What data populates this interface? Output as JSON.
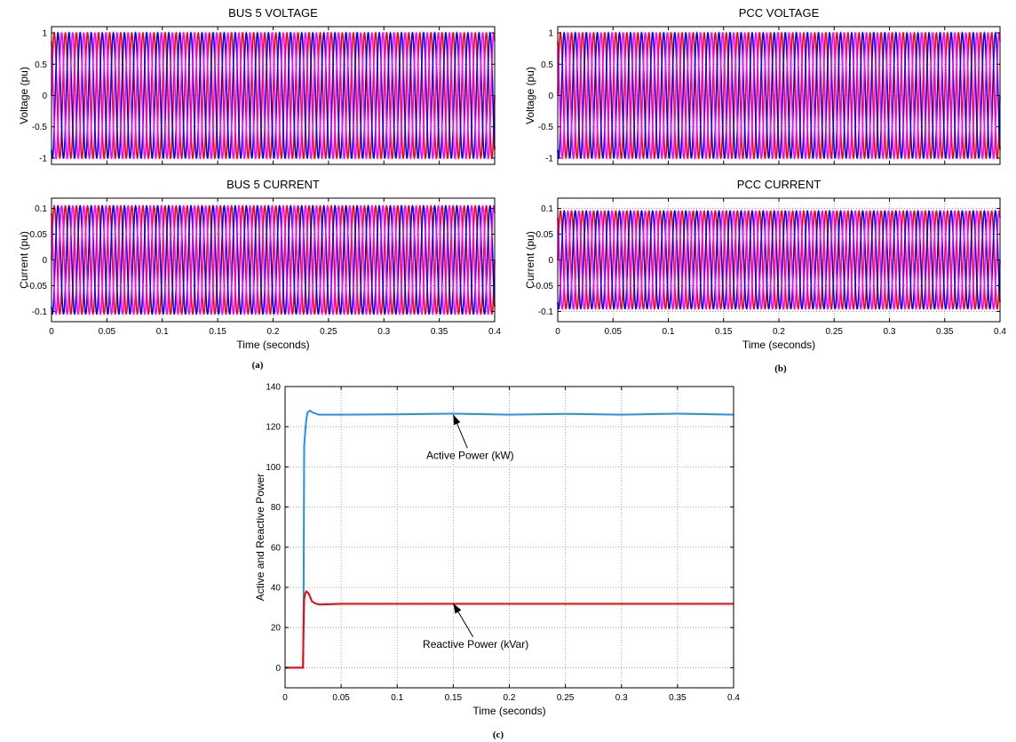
{
  "colors": {
    "phase_a": "#ff0000",
    "phase_b": "#0000ff",
    "phase_c": "#ff00ff",
    "active": "#1e90ff",
    "reactive": "#ff0000",
    "grid": "#8c8c8c"
  },
  "panel_labels": {
    "a": "(a)",
    "b": "(b)",
    "c": "(c)"
  },
  "chart_data": [
    {
      "id": "bus5_voltage",
      "type": "line",
      "title": "BUS 5 VOLTAGE",
      "xlabel": "",
      "ylabel": "Voltage (pu)",
      "xlim": [
        0,
        0.4
      ],
      "ylim": [
        -1.1,
        1.1
      ],
      "xticks": [
        0,
        0.05,
        0.1,
        0.15,
        0.2,
        0.25,
        0.3,
        0.35,
        0.4
      ],
      "xtick_labels_shown": false,
      "yticks": [
        -1,
        -0.5,
        0,
        0.5,
        1
      ],
      "ytick_labels": [
        "-1",
        "-0.5",
        "0",
        "0.5",
        "1"
      ],
      "grid": true,
      "waveform": {
        "kind": "three_phase_sine",
        "frequency_hz": 100,
        "amplitude": 1.0,
        "phase_deg": [
          0,
          -120,
          120
        ]
      }
    },
    {
      "id": "bus5_current",
      "type": "line",
      "title": "BUS 5 CURRENT",
      "xlabel": "Time (seconds)",
      "ylabel": "Current (pu)",
      "xlim": [
        0,
        0.4
      ],
      "ylim": [
        -0.12,
        0.12
      ],
      "xticks": [
        0,
        0.05,
        0.1,
        0.15,
        0.2,
        0.25,
        0.3,
        0.35,
        0.4
      ],
      "xtick_labels_shown": true,
      "xtick_labels": [
        "0",
        "0.05",
        "0.1",
        "0.15",
        "0.2",
        "0.25",
        "0.3",
        "0.35",
        "0.4"
      ],
      "yticks": [
        -0.1,
        -0.05,
        0,
        0.05,
        0.1
      ],
      "ytick_labels": [
        "-0.1",
        "-0.05",
        "0",
        "0.05",
        "0.1"
      ],
      "grid": true,
      "waveform": {
        "kind": "three_phase_sine",
        "frequency_hz": 100,
        "amplitude": 0.105,
        "phase_deg": [
          0,
          -120,
          120
        ]
      }
    },
    {
      "id": "pcc_voltage",
      "type": "line",
      "title": "PCC VOLTAGE",
      "xlabel": "",
      "ylabel": "Voltage (pu)",
      "xlim": [
        0,
        0.4
      ],
      "ylim": [
        -1.1,
        1.1
      ],
      "xticks": [
        0,
        0.05,
        0.1,
        0.15,
        0.2,
        0.25,
        0.3,
        0.35,
        0.4
      ],
      "xtick_labels_shown": false,
      "yticks": [
        -1,
        -0.5,
        0,
        0.5,
        1
      ],
      "ytick_labels": [
        "-1",
        "-0.5",
        "0",
        "0.5",
        "1"
      ],
      "grid": true,
      "waveform": {
        "kind": "three_phase_sine",
        "frequency_hz": 100,
        "amplitude": 1.0,
        "phase_deg": [
          0,
          -120,
          120
        ]
      }
    },
    {
      "id": "pcc_current",
      "type": "line",
      "title": "PCC CURRENT",
      "xlabel": "Time (seconds)",
      "ylabel": "Current (pu)",
      "xlim": [
        0,
        0.4
      ],
      "ylim": [
        -0.12,
        0.12
      ],
      "xticks": [
        0,
        0.05,
        0.1,
        0.15,
        0.2,
        0.25,
        0.3,
        0.35,
        0.4
      ],
      "xtick_labels_shown": true,
      "xtick_labels": [
        "0",
        "0.05",
        "0.1",
        "0.15",
        "0.2",
        "0.25",
        "0.3",
        "0.35",
        "0.4"
      ],
      "yticks": [
        -0.1,
        -0.05,
        0,
        0.05,
        0.1
      ],
      "ytick_labels": [
        "-0.1",
        "-0.05",
        "0",
        "0.05",
        "0.1"
      ],
      "grid": true,
      "waveform": {
        "kind": "three_phase_sine",
        "frequency_hz": 100,
        "amplitude": 0.095,
        "phase_deg": [
          0,
          -120,
          120
        ]
      }
    },
    {
      "id": "power",
      "type": "line",
      "title": "",
      "xlabel": "Time (seconds)",
      "ylabel": "Active and Reactive Power",
      "xlim": [
        0,
        0.4
      ],
      "ylim": [
        -10,
        140
      ],
      "xticks": [
        0,
        0.05,
        0.1,
        0.15,
        0.2,
        0.25,
        0.3,
        0.35,
        0.4
      ],
      "xtick_labels": [
        "0",
        "0.05",
        "0.1",
        "0.15",
        "0.2",
        "0.25",
        "0.3",
        "0.35",
        "0.4"
      ],
      "yticks": [
        0,
        20,
        40,
        60,
        80,
        100,
        120,
        140
      ],
      "ytick_labels": [
        "0",
        "20",
        "40",
        "60",
        "80",
        "100",
        "120",
        "140"
      ],
      "grid": true,
      "series": [
        {
          "key": "active",
          "x": [
            0,
            0.016,
            0.0165,
            0.017,
            0.018,
            0.019,
            0.02,
            0.022,
            0.025,
            0.03,
            0.05,
            0.1,
            0.15,
            0.2,
            0.25,
            0.3,
            0.35,
            0.4
          ],
          "y": [
            0,
            0,
            30,
            110,
            118,
            124,
            127,
            128,
            127,
            126,
            126,
            126.2,
            126.5,
            126,
            126.4,
            126,
            126.5,
            126
          ]
        },
        {
          "key": "reactive",
          "x": [
            0,
            0.016,
            0.0165,
            0.017,
            0.018,
            0.019,
            0.021,
            0.024,
            0.027,
            0.03,
            0.05,
            0.1,
            0.15,
            0.2,
            0.25,
            0.3,
            0.35,
            0.4
          ],
          "y": [
            0,
            0,
            20,
            34,
            37,
            38,
            37,
            33,
            32,
            31.5,
            31.8,
            31.8,
            31.8,
            31.8,
            31.8,
            31.8,
            31.8,
            31.8
          ]
        }
      ],
      "annotations": [
        {
          "text": "Active Power (kW)",
          "arrow_to": [
            0.15,
            126
          ],
          "text_at": [
            0.165,
            104
          ]
        },
        {
          "text": "Reactive Power (kVar)",
          "arrow_to": [
            0.15,
            32
          ],
          "text_at": [
            0.17,
            10
          ]
        }
      ]
    }
  ]
}
